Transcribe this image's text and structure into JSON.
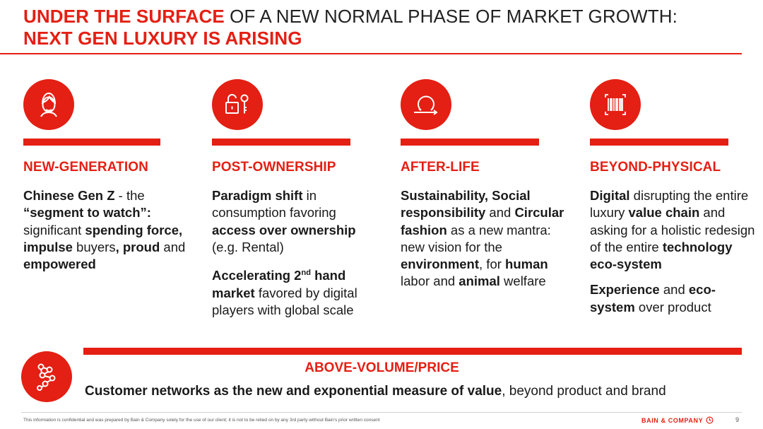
{
  "title": {
    "line1_red": "UNDER THE SURFACE",
    "line1_dark": " OF A NEW NORMAL PHASE OF MARKET GROWTH:",
    "line2_red": "NEXT GEN LUXURY IS ARISING"
  },
  "columns": [
    {
      "heading": "NEW-GENERATION",
      "icon": "person-face-icon",
      "p1": [
        {
          "t": "Chinese Gen Z",
          "b": true
        },
        {
          "t": " - the ",
          "b": false
        },
        {
          "t": "“segment to watch”:",
          "b": true
        },
        {
          "t": " significant ",
          "b": false
        },
        {
          "t": "spending force, impulse",
          "b": true
        },
        {
          "t": " buyers",
          "b": false
        },
        {
          "t": ",",
          "b": true
        },
        {
          "t": " ",
          "b": false
        },
        {
          "t": "proud",
          "b": true
        },
        {
          "t": " and ",
          "b": false
        },
        {
          "t": "empowered",
          "b": true
        }
      ]
    },
    {
      "heading": "POST-OWNERSHIP",
      "icon": "unlock-key-icon",
      "p1": [
        {
          "t": "Paradigm shift",
          "b": true
        },
        {
          "t": " in consumption favoring ",
          "b": false
        },
        {
          "t": "access over ownership",
          "b": true
        },
        {
          "t": " (e.g. Rental)",
          "b": false
        }
      ],
      "p2_bold_a": "Accelerating 2",
      "p2_sup": "nd",
      "p2_bold_b": " hand market",
      "p2_rest": " favored by digital players with global scale"
    },
    {
      "heading": "AFTER-LIFE",
      "icon": "circular-arrow-icon",
      "p1": [
        {
          "t": "Sustainability, Social responsibility",
          "b": true
        },
        {
          "t": " and ",
          "b": false
        },
        {
          "t": "Circular fashion",
          "b": true
        },
        {
          "t": " as a new mantra: new vision for the ",
          "b": false
        },
        {
          "t": "environment",
          "b": true
        },
        {
          "t": ", for ",
          "b": false
        },
        {
          "t": "human",
          "b": true
        },
        {
          "t": " labor and ",
          "b": false
        },
        {
          "t": "animal",
          "b": true
        },
        {
          "t": " welfare",
          "b": false
        }
      ]
    },
    {
      "heading": "BEYOND-PHYSICAL",
      "icon": "barcode-scan-icon",
      "p1": [
        {
          "t": "Digital",
          "b": true
        },
        {
          "t": " disrupting the entire luxury ",
          "b": false
        },
        {
          "t": "value chain",
          "b": true
        },
        {
          "t": " and asking for a holistic redesign of the entire ",
          "b": false
        },
        {
          "t": "technology eco-system",
          "b": true
        }
      ],
      "p2": [
        {
          "t": "Experience",
          "b": true
        },
        {
          "t": " and ",
          "b": false
        },
        {
          "t": "eco-system",
          "b": true
        },
        {
          "t": " over product",
          "b": false
        }
      ]
    }
  ],
  "bottom": {
    "heading": "ABOVE-VOLUME/PRICE",
    "icon": "network-nodes-icon",
    "text_bold": "Customer networks as the new and exponential measure of value",
    "text_rest": ", beyond product and brand"
  },
  "footer": {
    "disclaimer": "This information is confidential and was prepared by Bain & Company solely for the use of our client; it is not to be relied on by any 3rd party without Bain's prior written consent",
    "brand": "BAIN & COMPANY",
    "page": "9"
  },
  "colors": {
    "accent": "#e41f13",
    "text": "#1a1a1a"
  }
}
